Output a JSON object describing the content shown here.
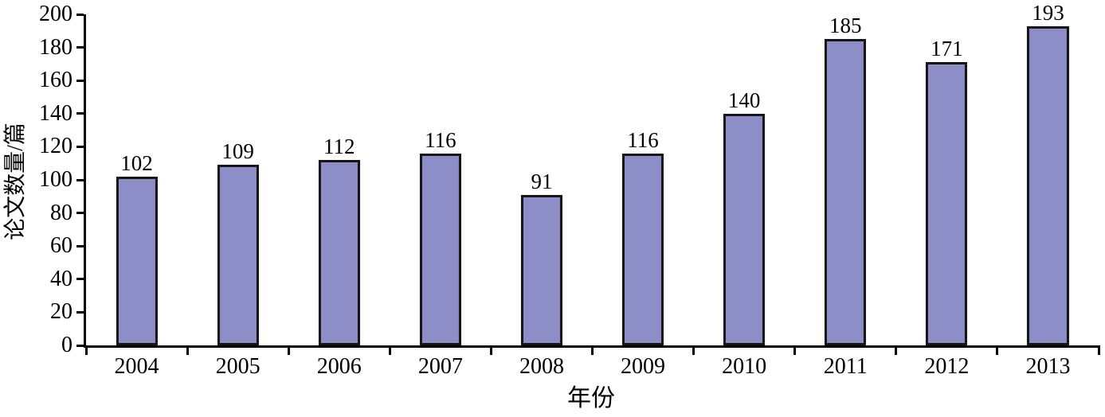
{
  "chart_data": {
    "type": "bar",
    "title": "",
    "xlabel": "年份",
    "ylabel": "论文数量/篇",
    "categories": [
      "2004",
      "2005",
      "2006",
      "2007",
      "2008",
      "2009",
      "2010",
      "2011",
      "2012",
      "2013"
    ],
    "values": [
      102,
      109,
      112,
      116,
      91,
      116,
      140,
      185,
      171,
      193
    ],
    "ylim": [
      0,
      200
    ],
    "yticks": [
      0,
      20,
      40,
      60,
      80,
      100,
      120,
      140,
      160,
      180,
      200
    ],
    "grid": false,
    "legend": "none",
    "bar_color": "#8d8dc8",
    "bar_border_color": "#151515",
    "axis_color": "#000000",
    "background_color": "#ffffff"
  }
}
